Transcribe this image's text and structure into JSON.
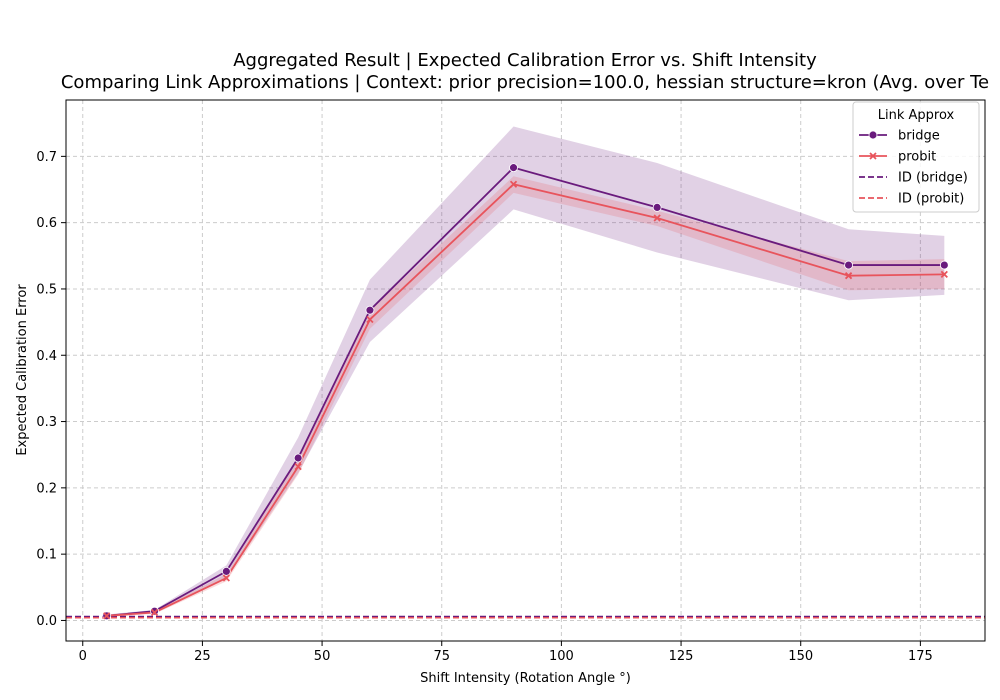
{
  "chart_data": {
    "type": "line",
    "title": "Aggregated Result | Expected Calibration Error vs. Shift Intensity",
    "subtitle": "Comparing Link Approximations | Context: prior precision=100.0, hessian structure=kron (Avg. over Te",
    "xlabel": "Shift Intensity (Rotation Angle °)",
    "ylabel": "Expected Calibration Error",
    "xlim": [
      -3.5,
      188.5
    ],
    "ylim": [
      -0.031,
      0.785
    ],
    "xticks": [
      0,
      25,
      50,
      75,
      100,
      125,
      150,
      175
    ],
    "yticks": [
      0.0,
      0.1,
      0.2,
      0.3,
      0.4,
      0.5,
      0.6,
      0.7
    ],
    "grid": true,
    "legend": {
      "title": "Link Approx",
      "placement": "top-right",
      "entries": [
        "bridge",
        "probit",
        "ID (bridge)",
        "ID (probit)"
      ]
    },
    "x": [
      5,
      15,
      30,
      45,
      60,
      90,
      120,
      160,
      180
    ],
    "series": [
      {
        "name": "bridge",
        "color": "#6a1b7d",
        "marker": "circle",
        "values": [
          0.007,
          0.014,
          0.074,
          0.245,
          0.468,
          0.683,
          0.623,
          0.536,
          0.536
        ],
        "ci_lower": [
          0.005,
          0.012,
          0.063,
          0.222,
          0.42,
          0.62,
          0.555,
          0.483,
          0.491
        ],
        "ci_upper": [
          0.009,
          0.016,
          0.083,
          0.276,
          0.514,
          0.745,
          0.69,
          0.59,
          0.58
        ]
      },
      {
        "name": "probit",
        "color": "#e8545c",
        "marker": "x",
        "values": [
          0.007,
          0.012,
          0.064,
          0.232,
          0.454,
          0.658,
          0.607,
          0.52,
          0.522
        ],
        "ci_lower": [
          0.005,
          0.01,
          0.059,
          0.22,
          0.44,
          0.645,
          0.595,
          0.498,
          0.5
        ],
        "ci_upper": [
          0.009,
          0.014,
          0.07,
          0.245,
          0.468,
          0.67,
          0.618,
          0.542,
          0.545
        ]
      }
    ],
    "reference_lines": [
      {
        "name": "ID (bridge)",
        "color": "#6a1b7d",
        "y": 0.006,
        "style": "dashed"
      },
      {
        "name": "ID (probit)",
        "color": "#e8545c",
        "y": 0.004,
        "style": "dashed"
      }
    ]
  }
}
